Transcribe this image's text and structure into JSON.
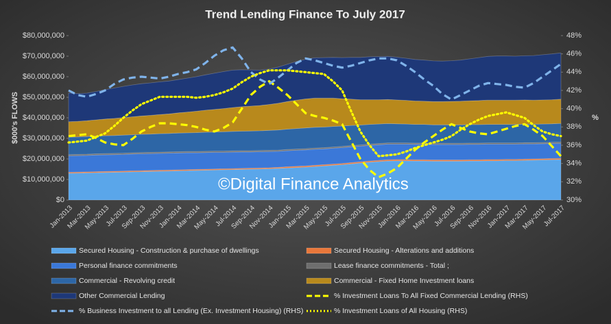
{
  "chart_data": {
    "type": "area",
    "title": "Trend Lending Finance To July 2017",
    "watermark": "©Digital Finance Analytics",
    "y_label": "$000's FLOWS",
    "y2_label": "%",
    "stacked": true,
    "categories": [
      "Jan-2013",
      null,
      "Mar-2013",
      null,
      "May-2013",
      null,
      "Jul-2013",
      null,
      "Sep-2013",
      null,
      "Nov-2013",
      null,
      "Jan-2014",
      null,
      "Mar-2014",
      null,
      "May-2014",
      null,
      "Jul-2014",
      null,
      "Sep-2014",
      null,
      "Nov-2014",
      null,
      "Jan-2015",
      null,
      "Mar-2015",
      null,
      "May-2015",
      null,
      "Jul-2015",
      null,
      "Sep-2015",
      null,
      "Nov-2015",
      null,
      "Jan-2016",
      null,
      "Mar-2016",
      null,
      "May-2016",
      null,
      "Jul-2016",
      null,
      "Sep-2016",
      null,
      "Nov-2016",
      null,
      "Jan-2017",
      null,
      "Mar-2017",
      null,
      "May-2017",
      null,
      "Jul-2017"
    ],
    "ylim": [
      0,
      80000000
    ],
    "yticks": [
      {
        "value": 0,
        "label": "$0"
      },
      {
        "value": 10000000,
        "label": "$10,000,000"
      },
      {
        "value": 20000000,
        "label": "$20,000,000"
      },
      {
        "value": 30000000,
        "label": "$30,000,000"
      },
      {
        "value": 40000000,
        "label": "$40,000,000"
      },
      {
        "value": 50000000,
        "label": "$50,000,000"
      },
      {
        "value": 60000000,
        "label": "$60,000,000"
      },
      {
        "value": 70000000,
        "label": "$70,000,000"
      },
      {
        "value": 80000000,
        "label": "$80,000,000"
      }
    ],
    "y2lim": [
      30,
      48
    ],
    "y2ticks": [
      {
        "value": 30,
        "label": "30%"
      },
      {
        "value": 32,
        "label": "32%"
      },
      {
        "value": 34,
        "label": "34%"
      },
      {
        "value": 36,
        "label": "36%"
      },
      {
        "value": 38,
        "label": "38%"
      },
      {
        "value": 40,
        "label": "40%"
      },
      {
        "value": 42,
        "label": "42%"
      },
      {
        "value": 44,
        "label": "44%"
      },
      {
        "value": 46,
        "label": "46%"
      },
      {
        "value": 48,
        "label": "48%"
      }
    ],
    "series": [
      {
        "name": "Secured Housing - Construction & purchase of dwellings",
        "color": "#5aa6ea",
        "values": [
          13000000,
          13100000,
          13200000,
          13300000,
          13400000,
          13500000,
          13600000,
          13700000,
          13800000,
          13900000,
          14000000,
          14100000,
          14200000,
          14300000,
          14400000,
          14500000,
          14600000,
          14700000,
          14800000,
          14900000,
          15000000,
          15100000,
          15200000,
          15400000,
          15600000,
          15800000,
          16000000,
          16300000,
          16600000,
          16900000,
          17200000,
          17600000,
          18000000,
          18400000,
          18700000,
          19000000,
          19100000,
          19100000,
          19000000,
          19000000,
          18900000,
          18900000,
          18900000,
          18900000,
          19000000,
          19000000,
          19100000,
          19100000,
          19200000,
          19200000,
          19300000,
          19400000,
          19500000,
          19600000,
          19700000
        ]
      },
      {
        "name": "Secured Housing - Alterations and additions",
        "color": "#e8773a",
        "values": [
          500000,
          500000,
          500000,
          500000,
          500000,
          500000,
          500000,
          500000,
          500000,
          500000,
          500000,
          500000,
          500000,
          500000,
          500000,
          500000,
          500000,
          500000,
          500000,
          500000,
          500000,
          500000,
          500000,
          500000,
          600000,
          600000,
          600000,
          600000,
          600000,
          600000,
          600000,
          600000,
          600000,
          600000,
          600000,
          600000,
          600000,
          600000,
          600000,
          600000,
          600000,
          600000,
          600000,
          600000,
          600000,
          600000,
          600000,
          600000,
          600000,
          600000,
          600000,
          600000,
          600000,
          600000,
          600000
        ]
      },
      {
        "name": "Personal finance commitments",
        "color": "#3b78d8",
        "values": [
          8000000,
          8000000,
          8000000,
          8100000,
          8100000,
          8100000,
          8100000,
          8200000,
          8200000,
          8200000,
          8200000,
          8200000,
          8200000,
          8200000,
          8100000,
          8100000,
          8100000,
          8000000,
          8000000,
          8000000,
          7900000,
          7900000,
          7900000,
          7800000,
          7800000,
          7800000,
          7800000,
          7800000,
          7700000,
          7700000,
          7700000,
          7700000,
          7600000,
          7600000,
          7600000,
          7600000,
          7500000,
          7500000,
          7500000,
          7500000,
          7500000,
          7500000,
          7500000,
          7500000,
          7500000,
          7500000,
          7500000,
          7500000,
          7400000,
          7400000,
          7400000,
          7300000,
          7300000,
          7300000,
          7300000
        ]
      },
      {
        "name": "Lease finance commitments - Total ;",
        "color": "#6e6e6e",
        "values": [
          600000,
          600000,
          600000,
          600000,
          600000,
          600000,
          600000,
          600000,
          600000,
          600000,
          600000,
          600000,
          600000,
          600000,
          600000,
          600000,
          600000,
          600000,
          600000,
          600000,
          600000,
          600000,
          600000,
          600000,
          600000,
          600000,
          600000,
          600000,
          600000,
          600000,
          600000,
          600000,
          600000,
          600000,
          600000,
          600000,
          600000,
          600000,
          600000,
          600000,
          600000,
          600000,
          600000,
          600000,
          600000,
          600000,
          600000,
          600000,
          600000,
          600000,
          600000,
          600000,
          600000,
          600000,
          600000
        ]
      },
      {
        "name": "Commercial - Revolving credit",
        "color": "#2d66a6",
        "values": [
          8500000,
          8500000,
          8600000,
          8600000,
          8700000,
          8700000,
          8800000,
          8800000,
          8900000,
          8900000,
          9000000,
          9000000,
          9100000,
          9100000,
          9200000,
          9300000,
          9300000,
          9400000,
          9500000,
          9500000,
          9600000,
          9600000,
          9700000,
          9800000,
          9900000,
          10000000,
          10100000,
          10100000,
          10000000,
          10000000,
          9900000,
          9800000,
          9700000,
          9600000,
          9500000,
          9400000,
          9300000,
          9200000,
          9100000,
          9100000,
          9000000,
          9000000,
          9000000,
          9000000,
          9000000,
          9000000,
          9000000,
          9000000,
          9000000,
          9000000,
          9000000,
          9000000,
          9000000,
          9000000,
          9100000
        ]
      },
      {
        "name": "Commercial - Fixed Home Investment loans",
        "color": "#b8891c",
        "values": [
          7500000,
          7600000,
          7700000,
          7900000,
          8100000,
          8300000,
          8500000,
          8700000,
          8900000,
          9100000,
          9300000,
          9500000,
          9800000,
          10100000,
          10400000,
          10700000,
          11000000,
          11300000,
          11600000,
          11900000,
          12100000,
          12300000,
          12600000,
          13000000,
          13400000,
          13800000,
          14100000,
          14200000,
          14100000,
          13800000,
          13300000,
          12800000,
          12300000,
          12000000,
          11800000,
          11700000,
          11600000,
          11500000,
          11400000,
          11300000,
          11300000,
          11300000,
          11400000,
          11500000,
          11600000,
          11700000,
          11800000,
          11800000,
          11800000,
          11800000,
          11800000,
          11700000,
          11700000,
          11700000,
          11800000
        ]
      },
      {
        "name": "Other Commercial Lending",
        "color": "#1e3878",
        "values": [
          14000000,
          13500000,
          13400000,
          13800000,
          14300000,
          14800000,
          15200000,
          15500000,
          15700000,
          15800000,
          15900000,
          16000000,
          16200000,
          16500000,
          16800000,
          17200000,
          17600000,
          18000000,
          18200000,
          18000000,
          17600000,
          17200000,
          17200000,
          17600000,
          18200000,
          18800000,
          19300000,
          19600000,
          19700000,
          19800000,
          20000000,
          20300000,
          20600000,
          20900000,
          21000000,
          21000000,
          20800000,
          20500000,
          20200000,
          20000000,
          19800000,
          19700000,
          19800000,
          20000000,
          20400000,
          20900000,
          21300000,
          21500000,
          21500000,
          21400000,
          21500000,
          21700000,
          22000000,
          22300000,
          22500000
        ]
      },
      {
        "name": "% Investment Loans To All Fixed Commercial Lending (RHS)",
        "color": "#ffff00",
        "axis": "y2",
        "type": "line",
        "dash": "dashed",
        "values": [
          37.0,
          37.1,
          37.2,
          36.8,
          36.3,
          36.1,
          36.0,
          36.7,
          37.5,
          38.0,
          38.4,
          38.4,
          38.3,
          38.2,
          38.0,
          37.7,
          37.5,
          37.9,
          38.5,
          40.0,
          41.5,
          42.4,
          43.0,
          42.3,
          41.5,
          40.5,
          39.5,
          39.2,
          39.0,
          38.7,
          38.3,
          36.4,
          34.5,
          33.3,
          32.5,
          32.9,
          33.5,
          34.5,
          35.5,
          36.3,
          37.0,
          37.7,
          38.3,
          37.9,
          37.5,
          37.3,
          37.2,
          37.5,
          37.8,
          38.1,
          38.3,
          37.7,
          37.0,
          35.9,
          34.8
        ]
      },
      {
        "name": "% Business Investment to all Lending (Ex. Investment Housing) (RHS)",
        "color": "#7fb3ea",
        "axis": "y2",
        "type": "line",
        "dash": "dashed",
        "values": [
          42.0,
          41.5,
          41.3,
          41.6,
          42.0,
          42.7,
          43.2,
          43.4,
          43.5,
          43.4,
          43.3,
          43.5,
          43.8,
          44.0,
          44.3,
          45.0,
          45.8,
          46.4,
          46.7,
          45.5,
          44.0,
          43.2,
          42.7,
          43.4,
          44.2,
          45.0,
          45.5,
          45.3,
          45.0,
          44.7,
          44.5,
          44.7,
          45.0,
          45.3,
          45.5,
          45.5,
          45.3,
          44.7,
          44.0,
          43.2,
          42.5,
          41.6,
          41.0,
          41.5,
          42.0,
          42.5,
          42.8,
          42.7,
          42.6,
          42.4,
          42.3,
          42.8,
          43.5,
          44.2,
          44.9
        ]
      },
      {
        "name": "% Investment Loans of All Housing (RHS)",
        "color": "#ffff00",
        "axis": "y2",
        "type": "line",
        "dash": "dotted",
        "values": [
          36.3,
          36.4,
          36.5,
          36.9,
          37.3,
          38.1,
          39.0,
          39.8,
          40.5,
          40.9,
          41.3,
          41.3,
          41.3,
          41.3,
          41.2,
          41.3,
          41.5,
          41.8,
          42.2,
          42.9,
          43.5,
          43.9,
          44.2,
          44.2,
          44.2,
          44.1,
          44.0,
          43.9,
          43.8,
          43.0,
          42.0,
          39.7,
          37.5,
          36.0,
          34.8,
          34.9,
          35.0,
          35.3,
          35.7,
          36.0,
          36.3,
          36.6,
          37.0,
          37.7,
          38.3,
          38.8,
          39.2,
          39.4,
          39.6,
          39.3,
          39.0,
          38.2,
          37.5,
          37.2,
          37.0
        ]
      }
    ]
  }
}
